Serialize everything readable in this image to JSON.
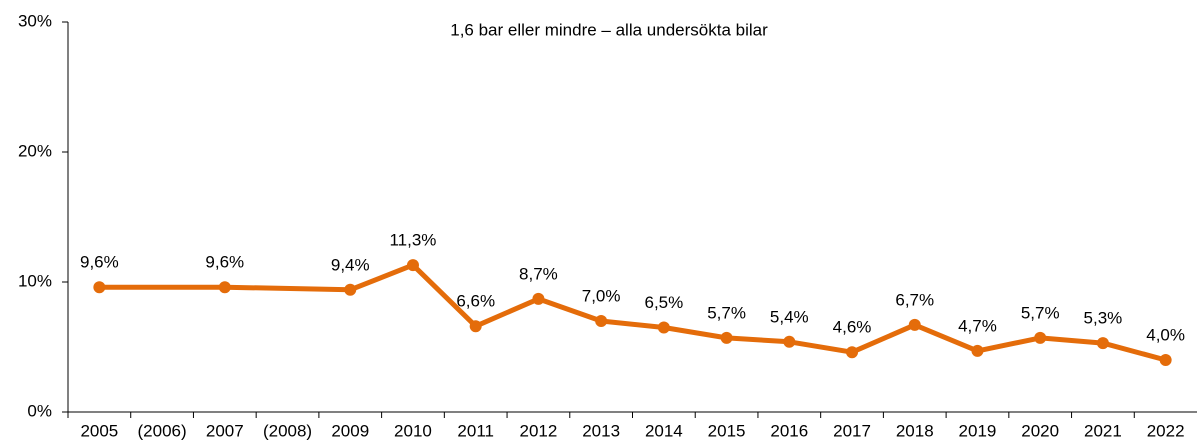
{
  "chart_data": {
    "type": "line",
    "title": "1,6 bar eller mindre – alla undersökta bilar",
    "x": [
      2005,
      2007,
      2009,
      2010,
      2011,
      2012,
      2013,
      2014,
      2015,
      2016,
      2017,
      2018,
      2019,
      2020,
      2021,
      2022
    ],
    "series": [
      {
        "name": null,
        "color": "#e46c0a",
        "values": [
          9.6,
          9.6,
          9.4,
          11.3,
          6.6,
          8.7,
          7.0,
          6.5,
          5.7,
          5.4,
          4.6,
          6.7,
          4.7,
          5.7,
          5.3,
          4.0
        ],
        "value_labels": [
          "9,6%",
          "9,6%",
          "9,4%",
          "11,3%",
          "6,6%",
          "8,7%",
          "7,0%",
          "6,5%",
          "5,7%",
          "5,4%",
          "4,6%",
          "6,7%",
          "4,7%",
          "5,7%",
          "5,3%",
          "4,0%"
        ]
      }
    ],
    "xlim": [
      2004.5,
      2022.5
    ],
    "xticks": [
      {
        "value": 2005,
        "label": "2005"
      },
      {
        "value": 2006,
        "label": "(2006)"
      },
      {
        "value": 2007,
        "label": "2007"
      },
      {
        "value": 2008,
        "label": "(2008)"
      },
      {
        "value": 2009,
        "label": "2009"
      },
      {
        "value": 2010,
        "label": "2010"
      },
      {
        "value": 2011,
        "label": "2011"
      },
      {
        "value": 2012,
        "label": "2012"
      },
      {
        "value": 2013,
        "label": "2013"
      },
      {
        "value": 2014,
        "label": "2014"
      },
      {
        "value": 2015,
        "label": "2015"
      },
      {
        "value": 2016,
        "label": "2016"
      },
      {
        "value": 2017,
        "label": "2017"
      },
      {
        "value": 2018,
        "label": "2018"
      },
      {
        "value": 2019,
        "label": "2019"
      },
      {
        "value": 2020,
        "label": "2020"
      },
      {
        "value": 2021,
        "label": "2021"
      },
      {
        "value": 2022,
        "label": "2022"
      }
    ],
    "ylim": [
      0,
      30
    ],
    "yticks": [
      {
        "value": 0,
        "label": "0%"
      },
      {
        "value": 10,
        "label": "10%"
      },
      {
        "value": 20,
        "label": "20%"
      },
      {
        "value": 30,
        "label": "30%"
      }
    ]
  }
}
